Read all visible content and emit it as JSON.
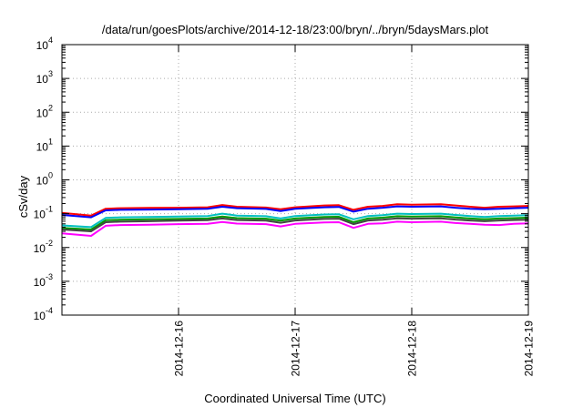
{
  "chart_data": {
    "type": "line",
    "title": "/data/run/goesPlots/archive/2014-12-18/23:00/bryn/../bryn/5daysMars.plot",
    "xlabel": "Coordinated Universal Time (UTC)",
    "ylabel": "cSv/day",
    "yscale": "log",
    "ylim_exponents": [
      -4,
      4
    ],
    "yticks": [
      {
        "base": "10",
        "exp": "4"
      },
      {
        "base": "10",
        "exp": "3"
      },
      {
        "base": "10",
        "exp": "2"
      },
      {
        "base": "10",
        "exp": "1"
      },
      {
        "base": "10",
        "exp": "0"
      },
      {
        "base": "10",
        "exp": "-1"
      },
      {
        "base": "10",
        "exp": "-2"
      },
      {
        "base": "10",
        "exp": "-3"
      },
      {
        "base": "10",
        "exp": "-4"
      }
    ],
    "xlim": [
      "2014-12-15T00:00",
      "2014-12-19T00:00"
    ],
    "xticks": [
      "2014-12-16",
      "2014-12-17",
      "2014-12-18",
      "2014-12-19"
    ],
    "grid": "dotted, at x major ticks and each y decade",
    "x": [
      "2014-12-15T00:00",
      "2014-12-15T06:00",
      "2014-12-15T09:00",
      "2014-12-15T12:00",
      "2014-12-15T18:00",
      "2014-12-16T00:00",
      "2014-12-16T06:00",
      "2014-12-16T09:00",
      "2014-12-16T12:00",
      "2014-12-16T18:00",
      "2014-12-16T21:00",
      "2014-12-17T00:00",
      "2014-12-17T06:00",
      "2014-12-17T09:00",
      "2014-12-17T12:00",
      "2014-12-17T15:00",
      "2014-12-17T18:00",
      "2014-12-17T21:00",
      "2014-12-18T00:00",
      "2014-12-18T06:00",
      "2014-12-18T09:00",
      "2014-12-18T12:00",
      "2014-12-18T15:00",
      "2014-12-18T18:00",
      "2014-12-18T21:00",
      "2014-12-19T00:00"
    ],
    "series": [
      {
        "color": "#ff0000",
        "values": [
          0.105,
          0.088,
          0.14,
          0.145,
          0.148,
          0.15,
          0.155,
          0.18,
          0.16,
          0.152,
          0.135,
          0.155,
          0.175,
          0.178,
          0.13,
          0.16,
          0.17,
          0.19,
          0.185,
          0.19,
          0.175,
          0.16,
          0.15,
          0.16,
          0.165,
          0.17
        ]
      },
      {
        "color": "#0000ff",
        "values": [
          0.092,
          0.078,
          0.125,
          0.13,
          0.132,
          0.135,
          0.14,
          0.16,
          0.145,
          0.138,
          0.12,
          0.14,
          0.155,
          0.158,
          0.115,
          0.14,
          0.15,
          0.165,
          0.16,
          0.165,
          0.15,
          0.14,
          0.135,
          0.14,
          0.145,
          0.15
        ]
      },
      {
        "color": "#00bfbf",
        "values": [
          0.045,
          0.04,
          0.075,
          0.078,
          0.08,
          0.082,
          0.085,
          0.1,
          0.088,
          0.084,
          0.072,
          0.085,
          0.095,
          0.096,
          0.068,
          0.085,
          0.09,
          0.1,
          0.098,
          0.1,
          0.092,
          0.085,
          0.08,
          0.085,
          0.088,
          0.09
        ]
      },
      {
        "color": "#009900",
        "values": [
          0.038,
          0.034,
          0.064,
          0.066,
          0.068,
          0.07,
          0.072,
          0.082,
          0.074,
          0.071,
          0.062,
          0.072,
          0.08,
          0.081,
          0.056,
          0.072,
          0.076,
          0.084,
          0.082,
          0.084,
          0.077,
          0.072,
          0.068,
          0.072,
          0.074,
          0.076
        ]
      },
      {
        "color": "#444444",
        "values": [
          0.034,
          0.03,
          0.056,
          0.058,
          0.06,
          0.062,
          0.064,
          0.072,
          0.065,
          0.062,
          0.054,
          0.063,
          0.07,
          0.071,
          0.049,
          0.063,
          0.066,
          0.073,
          0.071,
          0.073,
          0.067,
          0.063,
          0.06,
          0.063,
          0.065,
          0.066
        ]
      },
      {
        "color": "#ff00ff",
        "values": [
          0.026,
          0.022,
          0.044,
          0.046,
          0.047,
          0.049,
          0.05,
          0.057,
          0.051,
          0.049,
          0.042,
          0.05,
          0.055,
          0.056,
          0.038,
          0.05,
          0.052,
          0.058,
          0.056,
          0.058,
          0.053,
          0.05,
          0.047,
          0.046,
          0.05,
          0.052
        ]
      }
    ]
  }
}
